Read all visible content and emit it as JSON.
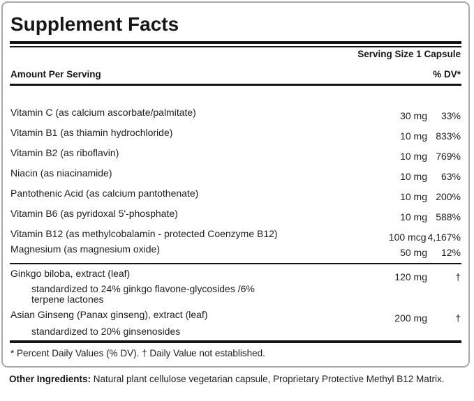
{
  "label": {
    "title": "Supplement Facts",
    "serving_size": "Serving Size 1 Capsule",
    "col_amount": "Amount Per Serving",
    "col_dv": "% DV*",
    "rows": [
      {
        "name": "Vitamin C (as calcium ascorbate/palmitate)",
        "amount": "30 mg",
        "dv": "33%"
      },
      {
        "name": "Vitamin B1 (as thiamin hydrochloride)",
        "amount": "10 mg",
        "dv": "833%"
      },
      {
        "name": "Vitamin B2 (as riboflavin)",
        "amount": "10 mg",
        "dv": "769%"
      },
      {
        "name": "Niacin (as niacinamide)",
        "amount": "10 mg",
        "dv": "63%"
      },
      {
        "name": "Pantothenic Acid (as calcium pantothenate)",
        "amount": "10 mg",
        "dv": "200%"
      },
      {
        "name": "Vitamin B6 (as pyridoxal 5'-phosphate)",
        "amount": "10 mg",
        "dv": "588%"
      },
      {
        "name": "Vitamin B12 (as methylcobalamin - protected Coenzyme B12)",
        "amount": "100 mcg",
        "dv": "4,167%"
      },
      {
        "name": "Magnesium (as magnesium oxide)",
        "amount": "50 mg",
        "dv": "12%"
      }
    ],
    "herbs": [
      {
        "name": "Ginkgo biloba, extract (leaf)",
        "amount": "120 mg",
        "dv": "†",
        "sub": "standardized to 24% ginkgo flavone-glycosides /6% terpene lactones"
      },
      {
        "name": "Asian Ginseng (Panax ginseng), extract (leaf)",
        "amount": "200 mg",
        "dv": "†",
        "sub": "standardized to 20% ginsenosides"
      }
    ],
    "footnote": "* Percent Daily Values (% DV). † Daily Value not established.",
    "other_ingredients_label": "Other Ingredients:",
    "other_ingredients_text": " Natural plant cellulose vegetarian capsule, Proprietary Protective Methyl B12 Matrix.",
    "colors": {
      "text": "#1d1d1d",
      "rule": "#141414",
      "panel_border": "#a8a8a8"
    }
  }
}
